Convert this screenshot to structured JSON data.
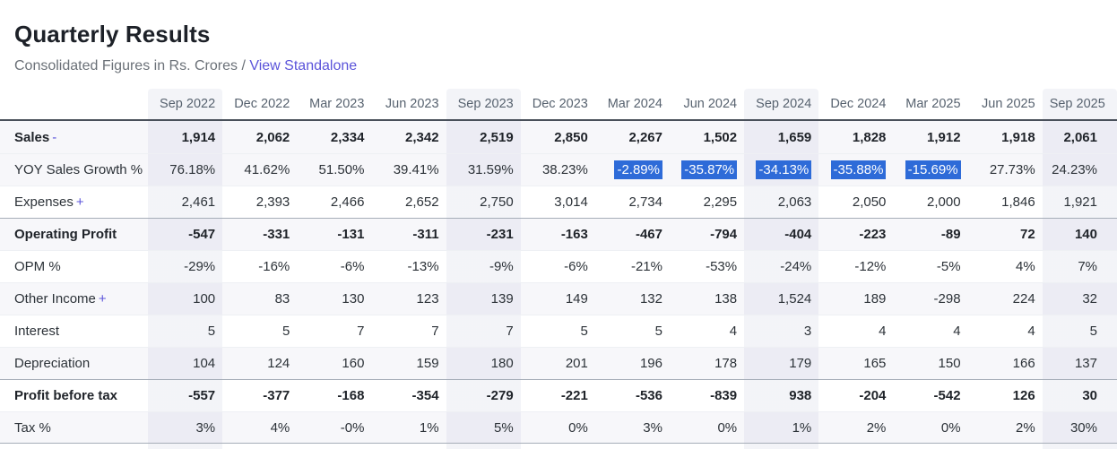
{
  "page": {
    "title": "Quarterly Results",
    "subtitle": "Consolidated Figures in Rs. Crores /",
    "standalone_link": "View Standalone"
  },
  "colors": {
    "link_purple": "#5b54da",
    "selection_blue": "#2e6bd8",
    "stripe_bg": "#f7f7fa",
    "header_text": "#57626f"
  },
  "table": {
    "columns": [
      "Sep 2022",
      "Dec 2022",
      "Mar 2023",
      "Jun 2023",
      "Sep 2023",
      "Dec 2023",
      "Mar 2024",
      "Jun 2024",
      "Sep 2024",
      "Dec 2024",
      "Mar 2025",
      "Jun 2025",
      "Sep 2025"
    ],
    "highlighted_columns": [
      0,
      4,
      8,
      12
    ],
    "rows": [
      {
        "label": "Sales",
        "toggle": "-",
        "bold": true,
        "striped": true,
        "section": false,
        "values": [
          "1,914",
          "2,062",
          "2,334",
          "2,342",
          "2,519",
          "2,850",
          "2,267",
          "1,502",
          "1,659",
          "1,828",
          "1,912",
          "1,918",
          "2,061"
        ]
      },
      {
        "label": "YOY Sales Growth %",
        "bold": false,
        "striped": true,
        "section": false,
        "selected": [
          6,
          7,
          8,
          9,
          10
        ],
        "values": [
          "76.18%",
          "41.62%",
          "51.50%",
          "39.41%",
          "31.59%",
          "38.23%",
          "-2.89%",
          "-35.87%",
          "-34.13%",
          "-35.88%",
          "-15.69%",
          "27.73%",
          "24.23%"
        ]
      },
      {
        "label": "Expenses",
        "toggle": "+",
        "bold": false,
        "striped": false,
        "section": false,
        "values": [
          "2,461",
          "2,393",
          "2,466",
          "2,652",
          "2,750",
          "3,014",
          "2,734",
          "2,295",
          "2,063",
          "2,050",
          "2,000",
          "1,846",
          "1,921"
        ]
      },
      {
        "label": "Operating Profit",
        "bold": true,
        "striped": true,
        "section": true,
        "values": [
          "-547",
          "-331",
          "-131",
          "-311",
          "-231",
          "-163",
          "-467",
          "-794",
          "-404",
          "-223",
          "-89",
          "72",
          "140"
        ]
      },
      {
        "label": "OPM %",
        "bold": false,
        "striped": false,
        "section": false,
        "values": [
          "-29%",
          "-16%",
          "-6%",
          "-13%",
          "-9%",
          "-6%",
          "-21%",
          "-53%",
          "-24%",
          "-12%",
          "-5%",
          "4%",
          "7%"
        ]
      },
      {
        "label": "Other Income",
        "toggle": "+",
        "bold": false,
        "striped": true,
        "section": false,
        "values": [
          "100",
          "83",
          "130",
          "123",
          "139",
          "149",
          "132",
          "138",
          "1,524",
          "189",
          "-298",
          "224",
          "32"
        ]
      },
      {
        "label": "Interest",
        "bold": false,
        "striped": false,
        "section": false,
        "values": [
          "5",
          "5",
          "7",
          "7",
          "7",
          "5",
          "5",
          "4",
          "3",
          "4",
          "4",
          "4",
          "5"
        ]
      },
      {
        "label": "Depreciation",
        "bold": false,
        "striped": true,
        "section": false,
        "values": [
          "104",
          "124",
          "160",
          "159",
          "180",
          "201",
          "196",
          "178",
          "179",
          "165",
          "150",
          "166",
          "137"
        ]
      },
      {
        "label": "Profit before tax",
        "bold": true,
        "striped": false,
        "section": true,
        "values": [
          "-557",
          "-377",
          "-168",
          "-354",
          "-279",
          "-221",
          "-536",
          "-839",
          "938",
          "-204",
          "-542",
          "126",
          "30"
        ]
      },
      {
        "label": "Tax %",
        "bold": false,
        "striped": true,
        "section": false,
        "end_border": true,
        "values": [
          "3%",
          "4%",
          "-0%",
          "1%",
          "5%",
          "0%",
          "3%",
          "0%",
          "1%",
          "2%",
          "0%",
          "2%",
          "30%"
        ]
      }
    ]
  }
}
